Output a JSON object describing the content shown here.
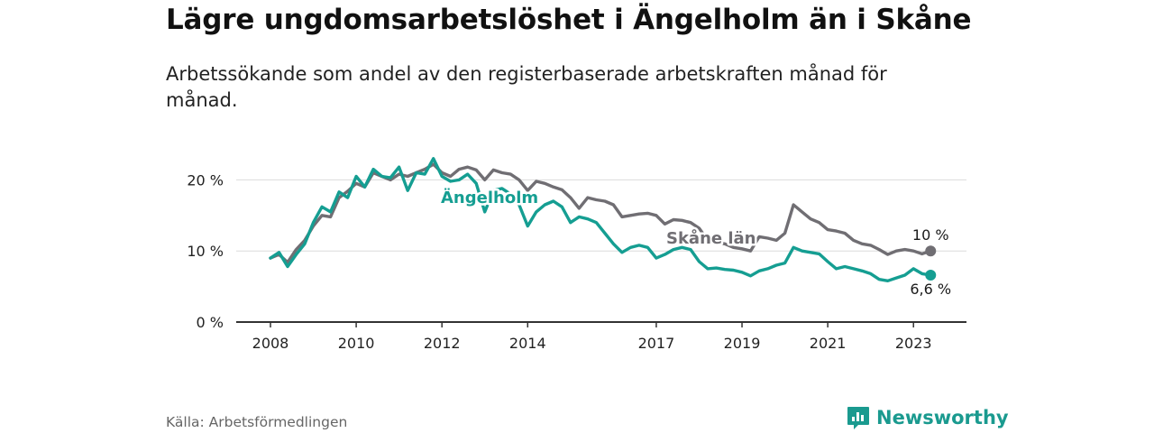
{
  "title": "Lägre ungdomsarbetslöshet i Ängelholm än i Skåne",
  "subtitle": "Arbetssökande som andel av den registerbaserade arbetskraften månad för månad.",
  "source": "Källa: Arbetsförmedlingen",
  "brand": "Newsworthy",
  "colors": {
    "angelholm": "#159e92",
    "skane": "#706e73",
    "axis": "#333333",
    "grid": "#dcdcdc",
    "brand": "#1a9a8f"
  },
  "chart_data": {
    "type": "line",
    "title": "Lägre ungdomsarbetslöshet i Ängelholm än i Skåne",
    "xlabel": "",
    "ylabel": "",
    "xlim": [
      2008,
      2023.5
    ],
    "ylim": [
      0,
      25
    ],
    "grid": true,
    "yticks": [
      {
        "value": 0,
        "label": "0 %"
      },
      {
        "value": 10,
        "label": "10 %"
      },
      {
        "value": 20,
        "label": "20 %"
      }
    ],
    "xticks": [
      {
        "value": 2008,
        "label": "2008"
      },
      {
        "value": 2010,
        "label": "2010"
      },
      {
        "value": 2012,
        "label": "2012"
      },
      {
        "value": 2014,
        "label": "2014"
      },
      {
        "value": 2017,
        "label": "2017"
      },
      {
        "value": 2019,
        "label": "2019"
      },
      {
        "value": 2021,
        "label": "2021"
      },
      {
        "value": 2023,
        "label": "2023"
      }
    ],
    "series": [
      {
        "name": "Skåne län",
        "label": "Skåne län",
        "end_label": "10 %",
        "x": [
          2008.0,
          2008.2,
          2008.4,
          2008.6,
          2008.8,
          2009.0,
          2009.2,
          2009.4,
          2009.6,
          2009.8,
          2010.0,
          2010.2,
          2010.4,
          2010.6,
          2010.8,
          2011.0,
          2011.2,
          2011.4,
          2011.6,
          2011.8,
          2012.0,
          2012.2,
          2012.4,
          2012.6,
          2012.8,
          2013.0,
          2013.2,
          2013.4,
          2013.6,
          2013.8,
          2014.0,
          2014.2,
          2014.4,
          2014.6,
          2014.8,
          2015.0,
          2015.2,
          2015.4,
          2015.6,
          2015.8,
          2016.0,
          2016.2,
          2016.4,
          2016.6,
          2016.8,
          2017.0,
          2017.2,
          2017.4,
          2017.6,
          2017.8,
          2018.0,
          2018.2,
          2018.4,
          2018.6,
          2018.8,
          2019.0,
          2019.2,
          2019.4,
          2019.6,
          2019.8,
          2020.0,
          2020.2,
          2020.4,
          2020.6,
          2020.8,
          2021.0,
          2021.2,
          2021.4,
          2021.6,
          2021.8,
          2022.0,
          2022.2,
          2022.4,
          2022.6,
          2022.8,
          2023.0,
          2023.2,
          2023.4
        ],
        "values": [
          9.0,
          9.5,
          8.4,
          10.2,
          11.5,
          13.5,
          15.0,
          14.8,
          17.5,
          18.4,
          19.5,
          19.0,
          21.0,
          20.5,
          20.0,
          20.8,
          20.5,
          21.0,
          21.5,
          22.2,
          21.0,
          20.5,
          21.5,
          21.8,
          21.4,
          20.0,
          21.4,
          21.0,
          20.8,
          20.0,
          18.5,
          19.8,
          19.5,
          19.0,
          18.6,
          17.5,
          16.0,
          17.5,
          17.2,
          17.0,
          16.5,
          14.8,
          15.0,
          15.2,
          15.3,
          15.0,
          13.8,
          14.4,
          14.3,
          14.0,
          13.2,
          11.5,
          11.2,
          11.0,
          10.5,
          10.3,
          10.0,
          12.0,
          11.8,
          11.5,
          12.5,
          16.5,
          15.5,
          14.5,
          14.0,
          13.0,
          12.8,
          12.5,
          11.5,
          11.0,
          10.8,
          10.2,
          9.5,
          10.0,
          10.2,
          10.0,
          9.6,
          10.0
        ]
      },
      {
        "name": "Ängelholm",
        "label": "Ängelholm",
        "end_label": "6,6 %",
        "x": [
          2008.0,
          2008.2,
          2008.4,
          2008.6,
          2008.8,
          2009.0,
          2009.2,
          2009.4,
          2009.6,
          2009.8,
          2010.0,
          2010.2,
          2010.4,
          2010.6,
          2010.8,
          2011.0,
          2011.2,
          2011.4,
          2011.6,
          2011.8,
          2012.0,
          2012.2,
          2012.4,
          2012.6,
          2012.8,
          2013.0,
          2013.2,
          2013.4,
          2013.6,
          2013.8,
          2014.0,
          2014.2,
          2014.4,
          2014.6,
          2014.8,
          2015.0,
          2015.2,
          2015.4,
          2015.6,
          2015.8,
          2016.0,
          2016.2,
          2016.4,
          2016.6,
          2016.8,
          2017.0,
          2017.2,
          2017.4,
          2017.6,
          2017.8,
          2018.0,
          2018.2,
          2018.4,
          2018.6,
          2018.8,
          2019.0,
          2019.2,
          2019.4,
          2019.6,
          2019.8,
          2020.0,
          2020.2,
          2020.4,
          2020.6,
          2020.8,
          2021.0,
          2021.2,
          2021.4,
          2021.6,
          2021.8,
          2022.0,
          2022.2,
          2022.4,
          2022.6,
          2022.8,
          2023.0,
          2023.2,
          2023.4
        ],
        "values": [
          9.0,
          9.8,
          7.8,
          9.5,
          11.0,
          14.0,
          16.2,
          15.5,
          18.3,
          17.5,
          20.5,
          19.0,
          21.5,
          20.5,
          20.3,
          21.8,
          18.5,
          21.0,
          20.8,
          23.0,
          20.5,
          19.8,
          20.0,
          20.8,
          19.5,
          15.5,
          18.5,
          18.8,
          18.0,
          16.5,
          13.5,
          15.5,
          16.5,
          17.0,
          16.2,
          14.0,
          14.8,
          14.5,
          14.0,
          12.5,
          11.0,
          9.8,
          10.5,
          10.8,
          10.5,
          9.0,
          9.5,
          10.2,
          10.5,
          10.2,
          8.5,
          7.5,
          7.6,
          7.4,
          7.3,
          7.0,
          6.5,
          7.2,
          7.5,
          8.0,
          8.3,
          10.5,
          10.0,
          9.8,
          9.6,
          8.5,
          7.5,
          7.8,
          7.5,
          7.2,
          6.8,
          6.0,
          5.8,
          6.2,
          6.6,
          7.5,
          6.8,
          6.6
        ]
      }
    ]
  }
}
